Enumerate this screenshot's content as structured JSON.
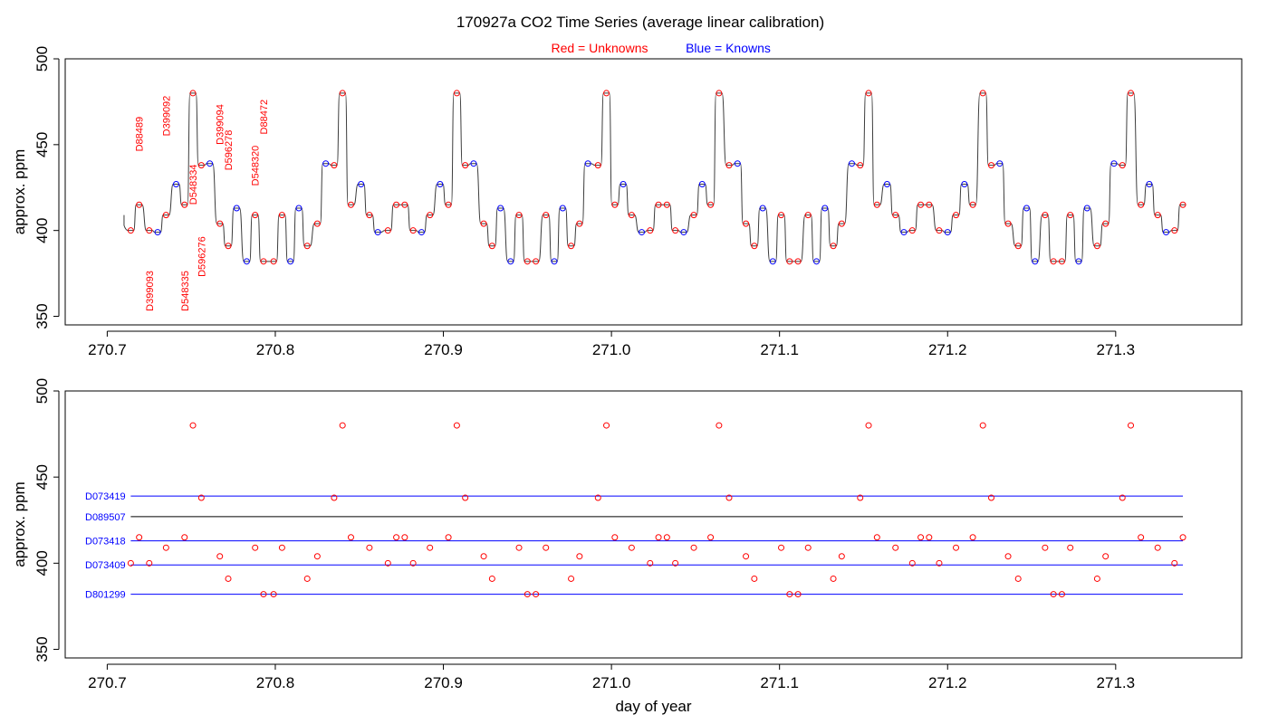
{
  "title": "170927a   CO2 Time Series (average linear calibration)",
  "legend": {
    "unknowns": {
      "label": "Red = Unknowns",
      "color": "#ff0000"
    },
    "knowns": {
      "label": "Blue = Knowns",
      "color": "#0000ff"
    }
  },
  "chart_data": [
    {
      "type": "line",
      "ylabel": "approx. ppm",
      "xlim": [
        270.675,
        271.375
      ],
      "ylim": [
        345,
        500
      ],
      "xticks": [
        "270.7",
        "270.8",
        "270.9",
        "271.0",
        "271.1",
        "271.2",
        "271.3"
      ],
      "yticks": [
        "350",
        "400",
        "450",
        "500"
      ],
      "grid": false,
      "series": [
        {
          "name": "Unknowns",
          "color": "#ff0000",
          "points": [
            [
              270.714,
              400
            ],
            [
              270.719,
              415
            ],
            [
              270.725,
              400
            ],
            [
              270.735,
              409
            ],
            [
              270.746,
              415
            ],
            [
              270.751,
              480
            ],
            [
              270.756,
              438
            ],
            [
              270.767,
              404
            ],
            [
              270.772,
              391
            ],
            [
              270.788,
              409
            ],
            [
              270.793,
              382
            ],
            [
              270.799,
              382
            ],
            [
              270.804,
              409
            ],
            [
              270.819,
              391
            ],
            [
              270.825,
              404
            ],
            [
              270.835,
              438
            ],
            [
              270.84,
              480
            ],
            [
              270.845,
              415
            ],
            [
              270.856,
              409
            ],
            [
              270.867,
              400
            ],
            [
              270.872,
              415
            ],
            [
              270.877,
              415
            ],
            [
              270.882,
              400
            ],
            [
              270.892,
              409
            ],
            [
              270.903,
              415
            ],
            [
              270.908,
              480
            ],
            [
              270.913,
              438
            ],
            [
              270.924,
              404
            ],
            [
              270.929,
              391
            ],
            [
              270.945,
              409
            ],
            [
              270.95,
              382
            ],
            [
              270.955,
              382
            ],
            [
              270.961,
              409
            ],
            [
              270.976,
              391
            ],
            [
              270.981,
              404
            ],
            [
              270.992,
              438
            ],
            [
              270.997,
              480
            ],
            [
              271.002,
              415
            ],
            [
              271.012,
              409
            ],
            [
              271.023,
              400
            ],
            [
              271.028,
              415
            ],
            [
              271.033,
              415
            ],
            [
              271.038,
              400
            ],
            [
              271.049,
              409
            ],
            [
              271.059,
              415
            ],
            [
              271.064,
              480
            ],
            [
              271.07,
              438
            ],
            [
              271.08,
              404
            ],
            [
              271.085,
              391
            ],
            [
              271.101,
              409
            ],
            [
              271.106,
              382
            ],
            [
              271.111,
              382
            ],
            [
              271.117,
              409
            ],
            [
              271.132,
              391
            ],
            [
              271.137,
              404
            ],
            [
              271.148,
              438
            ],
            [
              271.153,
              480
            ],
            [
              271.158,
              415
            ],
            [
              271.169,
              409
            ],
            [
              271.179,
              400
            ],
            [
              271.184,
              415
            ],
            [
              271.189,
              415
            ],
            [
              271.195,
              400
            ],
            [
              271.205,
              409
            ],
            [
              271.215,
              415
            ],
            [
              271.221,
              480
            ],
            [
              271.226,
              438
            ],
            [
              271.236,
              404
            ],
            [
              271.242,
              391
            ],
            [
              271.258,
              409
            ],
            [
              271.263,
              382
            ],
            [
              271.268,
              382
            ],
            [
              271.273,
              409
            ],
            [
              271.289,
              391
            ],
            [
              271.294,
              404
            ],
            [
              271.304,
              438
            ],
            [
              271.309,
              480
            ],
            [
              271.315,
              415
            ],
            [
              271.325,
              409
            ],
            [
              271.335,
              400
            ],
            [
              271.34,
              415
            ]
          ]
        },
        {
          "name": "Knowns",
          "color": "#0000ff",
          "points": [
            [
              270.73,
              399
            ],
            [
              270.741,
              427
            ],
            [
              270.761,
              439
            ],
            [
              270.777,
              413
            ],
            [
              270.783,
              382
            ],
            [
              270.809,
              382
            ],
            [
              270.814,
              413
            ],
            [
              270.83,
              439
            ],
            [
              270.851,
              427
            ],
            [
              270.861,
              399
            ],
            [
              270.887,
              399
            ],
            [
              270.898,
              427
            ],
            [
              270.918,
              439
            ],
            [
              270.934,
              413
            ],
            [
              270.94,
              382
            ],
            [
              270.966,
              382
            ],
            [
              270.971,
              413
            ],
            [
              270.986,
              439
            ],
            [
              271.007,
              427
            ],
            [
              271.018,
              399
            ],
            [
              271.043,
              399
            ],
            [
              271.054,
              427
            ],
            [
              271.075,
              439
            ],
            [
              271.09,
              413
            ],
            [
              271.096,
              382
            ],
            [
              271.122,
              382
            ],
            [
              271.127,
              413
            ],
            [
              271.143,
              439
            ],
            [
              271.164,
              427
            ],
            [
              271.174,
              399
            ],
            [
              271.2,
              399
            ],
            [
              271.21,
              427
            ],
            [
              271.231,
              439
            ],
            [
              271.247,
              413
            ],
            [
              271.252,
              382
            ],
            [
              271.278,
              382
            ],
            [
              271.283,
              413
            ],
            [
              271.299,
              439
            ],
            [
              271.32,
              427
            ],
            [
              271.33,
              399
            ]
          ]
        }
      ],
      "annotations": [
        {
          "text": "D88489",
          "x": 270.719,
          "y": 446
        },
        {
          "text": "D399093",
          "x": 270.725,
          "y": 353
        },
        {
          "text": "D399092",
          "x": 270.735,
          "y": 455
        },
        {
          "text": "D548335",
          "x": 270.746,
          "y": 353
        },
        {
          "text": "D548334",
          "x": 270.751,
          "y": 415
        },
        {
          "text": "D596276",
          "x": 270.756,
          "y": 373
        },
        {
          "text": "D399094",
          "x": 270.767,
          "y": 450
        },
        {
          "text": "D596278",
          "x": 270.772,
          "y": 435
        },
        {
          "text": "D548320",
          "x": 270.788,
          "y": 426
        },
        {
          "text": "D88472",
          "x": 270.793,
          "y": 456
        }
      ]
    },
    {
      "type": "scatter",
      "xlabel": "day of year",
      "ylabel": "approx. ppm",
      "xlim": [
        270.675,
        271.375
      ],
      "ylim": [
        345,
        500
      ],
      "xticks": [
        "270.7",
        "270.8",
        "270.9",
        "271.0",
        "271.1",
        "271.2",
        "271.3"
      ],
      "yticks": [
        "350",
        "400",
        "450",
        "500"
      ],
      "grid": false,
      "series": [
        {
          "name": "Unknowns",
          "color": "#ff0000",
          "source": "chart_data.0.series.0"
        }
      ],
      "reference_lines": [
        {
          "label": "D073419",
          "value": 439,
          "color": "#0000ff"
        },
        {
          "label": "D089507",
          "value": 427,
          "color": "#000000"
        },
        {
          "label": "D073418",
          "value": 413,
          "color": "#0000ff"
        },
        {
          "label": "D073409",
          "value": 399,
          "color": "#0000ff"
        },
        {
          "label": "D801299",
          "value": 382,
          "color": "#0000ff"
        }
      ],
      "reference_range": [
        270.714,
        271.34
      ]
    }
  ]
}
